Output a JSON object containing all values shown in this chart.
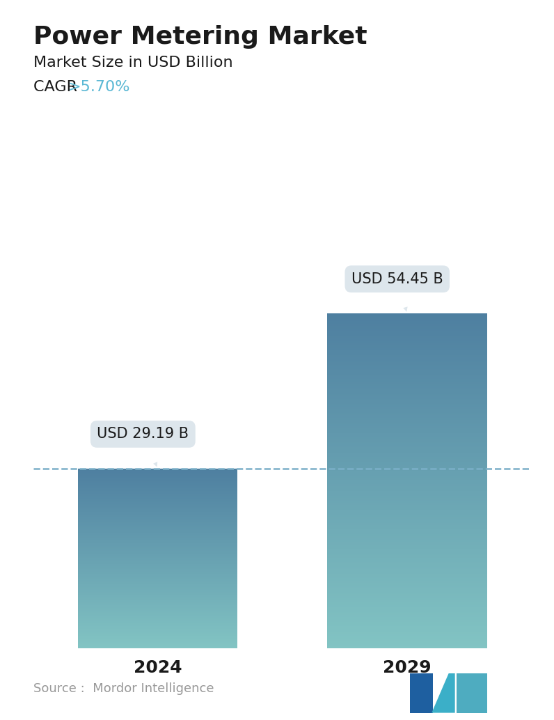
{
  "title": "Power Metering Market",
  "subtitle": "Market Size in USD Billion",
  "cagr_label": "CAGR ",
  "cagr_value": ">5.70%",
  "cagr_color": "#5BB8D4",
  "categories": [
    "2024",
    "2029"
  ],
  "values": [
    29.19,
    54.45
  ],
  "labels": [
    "USD 29.19 B",
    "USD 54.45 B"
  ],
  "bar_color_top": "#4E7FA0",
  "bar_color_bottom": "#82C4C3",
  "dashed_line_color": "#7AAFC8",
  "dashed_line_value": 29.19,
  "annotation_bg_color": "#DDE6EC",
  "annotation_text_color": "#1a1a1a",
  "source_text": "Source :  Mordor Intelligence",
  "source_color": "#999999",
  "title_fontsize": 26,
  "subtitle_fontsize": 16,
  "cagr_fontsize": 16,
  "tick_fontsize": 18,
  "annotation_fontsize": 15,
  "background_color": "#ffffff",
  "ylim": [
    0,
    68
  ],
  "bar_positions": [
    0.25,
    0.75
  ],
  "bar_width": 0.32,
  "logo_colors": [
    "#1E5FA0",
    "#3BAFC8",
    "#4EACC0"
  ]
}
